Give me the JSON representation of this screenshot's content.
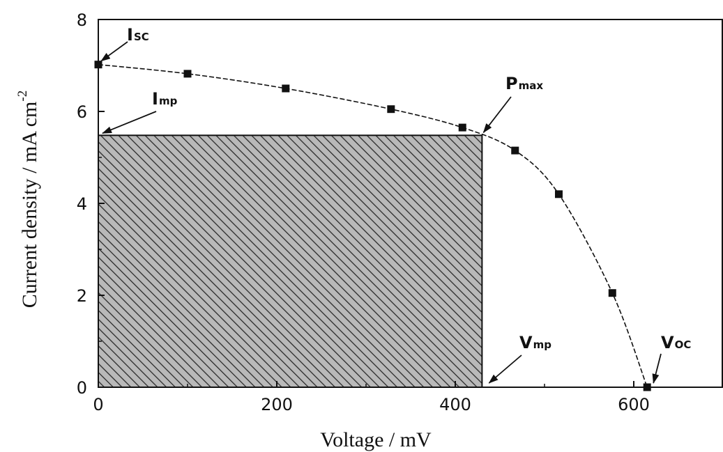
{
  "chart_data": {
    "type": "line",
    "xlabel": "Voltage / mV",
    "ylabel": "Current density / mA cm",
    "ylabel_superscript": "-2",
    "xlim": [
      0,
      700
    ],
    "ylim": [
      0,
      8
    ],
    "x_ticks": [
      0,
      200,
      400,
      600
    ],
    "y_ticks": [
      0,
      2,
      4,
      6,
      8
    ],
    "grid": false,
    "series": [
      {
        "points": [
          {
            "x": 0,
            "y": 7.02
          },
          {
            "x": 100,
            "y": 6.82
          },
          {
            "x": 210,
            "y": 6.5
          },
          {
            "x": 328,
            "y": 6.05
          },
          {
            "x": 408,
            "y": 5.65
          },
          {
            "x": 467,
            "y": 5.15
          },
          {
            "x": 516,
            "y": 4.2
          },
          {
            "x": 576,
            "y": 2.05
          },
          {
            "x": 615,
            "y": 0
          }
        ]
      }
    ],
    "shaded_rectangle": {
      "x0": 0,
      "x1": 430,
      "y0": 0,
      "y1": 5.48
    },
    "annotations": [
      {
        "id": "isc",
        "main": "I",
        "sub": "SC",
        "target": {
          "x": 0,
          "y": 7.02
        }
      },
      {
        "id": "imp",
        "main": "I",
        "sub": "mp",
        "target": {
          "x": 0,
          "y": 5.48
        }
      },
      {
        "id": "pmax",
        "main": "P",
        "sub": "max",
        "target": {
          "x": 430,
          "y": 5.48
        }
      },
      {
        "id": "vmp",
        "main": "V",
        "sub": "mp",
        "target": {
          "x": 430,
          "y": 0
        }
      },
      {
        "id": "voc",
        "main": "V",
        "sub": "OC",
        "target": {
          "x": 615,
          "y": 0
        }
      }
    ]
  }
}
